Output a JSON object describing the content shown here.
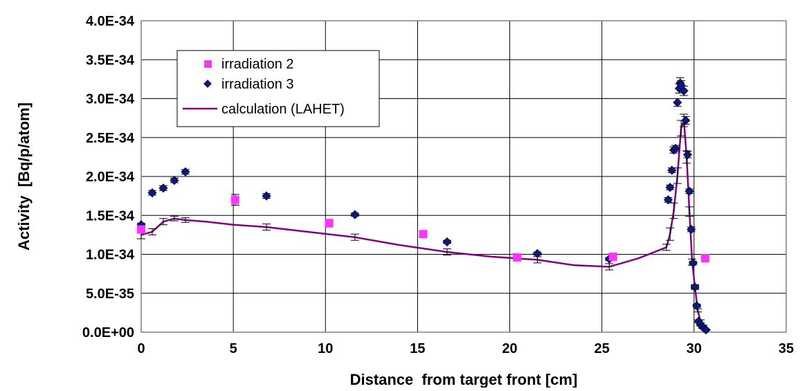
{
  "chart_data": {
    "type": "scatter",
    "title": "",
    "xlabel": "Distance  from target front [cm]",
    "ylabel": "Activity  [Bq/p/atom]",
    "xlim": [
      0,
      35
    ],
    "ylim": [
      0,
      4e-34
    ],
    "x_ticks": [
      0,
      5,
      10,
      15,
      20,
      25,
      30,
      35
    ],
    "x_tick_labels": [
      "0",
      "5",
      "10",
      "15",
      "20",
      "25",
      "30",
      "35"
    ],
    "y_ticks": [
      0,
      5e-35,
      1e-34,
      1.5e-34,
      2e-34,
      2.5e-34,
      3e-34,
      3.5e-34,
      4e-34
    ],
    "y_tick_labels": [
      "0.0E+00",
      "5.0E-35",
      "1.0E-34",
      "1.5E-34",
      "2.0E-34",
      "2.5E-34",
      "3.0E-34",
      "3.5E-34",
      "4.0E-34"
    ],
    "grid": true,
    "legend_position": "top-left",
    "series": [
      {
        "name": "irradiation 2",
        "marker": "square",
        "color": "#ff33ff",
        "points": [
          {
            "x": 0.0,
            "y": 1.32e-34,
            "err": 4e-36
          },
          {
            "x": 5.1,
            "y": 1.7e-34,
            "err": 7e-36
          },
          {
            "x": 10.2,
            "y": 1.4e-34,
            "err": 5e-36
          },
          {
            "x": 15.3,
            "y": 1.26e-34,
            "err": 3e-36
          },
          {
            "x": 20.4,
            "y": 9.6e-35,
            "err": 2e-36
          },
          {
            "x": 25.6,
            "y": 9.7e-35,
            "err": 2e-36
          },
          {
            "x": 30.6,
            "y": 9.5e-35,
            "err": 2e-36
          }
        ]
      },
      {
        "name": "irradiation 3",
        "marker": "diamond",
        "color": "#0d1a7a",
        "points": [
          {
            "x": 0.0,
            "y": 1.38e-34,
            "err": 2e-36
          },
          {
            "x": 0.6,
            "y": 1.79e-34,
            "err": 3e-36
          },
          {
            "x": 1.2,
            "y": 1.85e-34,
            "err": 3e-36
          },
          {
            "x": 1.8,
            "y": 1.95e-34,
            "err": 3e-36
          },
          {
            "x": 2.4,
            "y": 2.06e-34,
            "err": 3e-36
          },
          {
            "x": 6.8,
            "y": 1.75e-34,
            "err": 3e-36
          },
          {
            "x": 11.6,
            "y": 1.51e-34,
            "err": 2e-36
          },
          {
            "x": 16.6,
            "y": 1.16e-34,
            "err": 2e-36
          },
          {
            "x": 21.5,
            "y": 1.01e-34,
            "err": 2e-36
          },
          {
            "x": 25.4,
            "y": 9.4e-35,
            "err": 2e-36
          },
          {
            "x": 28.6,
            "y": 1.7e-34,
            "err": 3e-36
          },
          {
            "x": 28.7,
            "y": 1.86e-34,
            "err": 3e-36
          },
          {
            "x": 28.8,
            "y": 2.08e-34,
            "err": 3e-36
          },
          {
            "x": 28.9,
            "y": 2.34e-34,
            "err": 4e-36
          },
          {
            "x": 29.0,
            "y": 2.36e-34,
            "err": 4e-36
          },
          {
            "x": 29.1,
            "y": 2.95e-34,
            "err": 5e-36
          },
          {
            "x": 29.2,
            "y": 3.13e-34,
            "err": 6e-36
          },
          {
            "x": 29.25,
            "y": 3.2e-34,
            "err": 7e-36
          },
          {
            "x": 29.3,
            "y": 3.17e-34,
            "err": 6e-36
          },
          {
            "x": 29.45,
            "y": 3.1e-34,
            "err": 6e-36
          },
          {
            "x": 29.55,
            "y": 2.72e-34,
            "err": 5e-36
          },
          {
            "x": 29.65,
            "y": 2.28e-34,
            "err": 4e-36
          },
          {
            "x": 29.75,
            "y": 1.81e-34,
            "err": 3e-36
          },
          {
            "x": 29.85,
            "y": 1.32e-34,
            "err": 3e-36
          },
          {
            "x": 29.95,
            "y": 8.9e-35,
            "err": 2e-36
          },
          {
            "x": 30.05,
            "y": 5.8e-35,
            "err": 2e-36
          },
          {
            "x": 30.15,
            "y": 3.4e-35,
            "err": 2e-36
          },
          {
            "x": 30.25,
            "y": 1.4e-35,
            "err": 2e-36
          },
          {
            "x": 30.35,
            "y": 1e-35,
            "err": 2e-36
          },
          {
            "x": 30.45,
            "y": 7e-36,
            "err": 2e-36
          },
          {
            "x": 30.55,
            "y": 5e-36,
            "err": 1e-36
          },
          {
            "x": 30.65,
            "y": 3e-36,
            "err": 1e-36
          }
        ]
      },
      {
        "name": "calculation (LAHET)",
        "type": "line",
        "color": "#800080",
        "points": [
          {
            "x": 0.0,
            "y": 1.25e-34,
            "err": 5e-36
          },
          {
            "x": 0.6,
            "y": 1.29e-34,
            "err": 4e-36
          },
          {
            "x": 1.2,
            "y": 1.42e-34,
            "err": 4e-36
          },
          {
            "x": 1.8,
            "y": 1.46e-34,
            "err": 3e-36
          },
          {
            "x": 2.4,
            "y": 1.44e-34,
            "err": 3e-36
          },
          {
            "x": 3.5,
            "y": 1.42e-34
          },
          {
            "x": 5.0,
            "y": 1.38e-34
          },
          {
            "x": 6.8,
            "y": 1.35e-34,
            "err": 4e-36
          },
          {
            "x": 9.0,
            "y": 1.29e-34
          },
          {
            "x": 11.6,
            "y": 1.22e-34,
            "err": 4e-36
          },
          {
            "x": 14.0,
            "y": 1.12e-34
          },
          {
            "x": 16.6,
            "y": 1.03e-34,
            "err": 4e-36
          },
          {
            "x": 19.0,
            "y": 9.7e-35
          },
          {
            "x": 21.5,
            "y": 9.3e-35,
            "err": 4e-36
          },
          {
            "x": 23.5,
            "y": 8.6e-35
          },
          {
            "x": 25.4,
            "y": 8.4e-35,
            "err": 4e-36
          },
          {
            "x": 27.0,
            "y": 9.5e-35
          },
          {
            "x": 28.5,
            "y": 1.09e-34,
            "err": 4e-36
          },
          {
            "x": 28.7,
            "y": 1.26e-34,
            "err": 8e-36
          },
          {
            "x": 28.9,
            "y": 1.56e-34,
            "err": 1e-35
          },
          {
            "x": 29.1,
            "y": 2.01e-34,
            "err": 1e-35
          },
          {
            "x": 29.3,
            "y": 2.62e-34,
            "err": 1e-35
          },
          {
            "x": 29.45,
            "y": 2.72e-34,
            "err": 8e-36
          },
          {
            "x": 29.6,
            "y": 2.25e-34,
            "err": 8e-36
          },
          {
            "x": 29.75,
            "y": 1.55e-34,
            "err": 6e-36
          },
          {
            "x": 29.9,
            "y": 9e-35,
            "err": 4e-36
          },
          {
            "x": 30.05,
            "y": 5.8e-35,
            "err": 3e-36
          },
          {
            "x": 30.2,
            "y": 2.8e-35,
            "err": 2e-36
          },
          {
            "x": 30.35,
            "y": 1.4e-35,
            "err": 2e-36
          },
          {
            "x": 30.5,
            "y": 8e-36,
            "err": 1e-36
          },
          {
            "x": 30.65,
            "y": 4e-36
          }
        ]
      }
    ]
  }
}
